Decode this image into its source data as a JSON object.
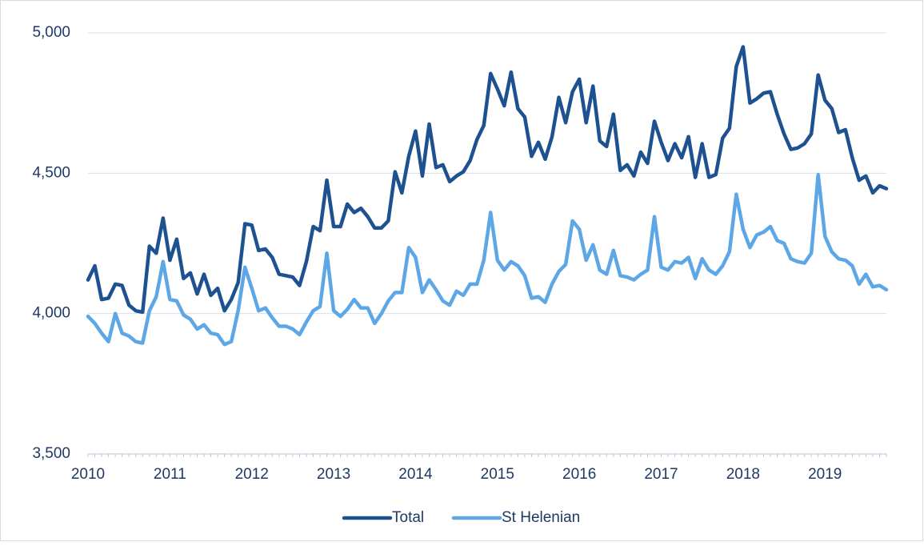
{
  "chart_data": {
    "type": "line",
    "categories": [
      "2010",
      null,
      null,
      null,
      null,
      null,
      null,
      null,
      null,
      null,
      null,
      null,
      "2011",
      null,
      null,
      null,
      null,
      null,
      null,
      null,
      null,
      null,
      null,
      null,
      "2012",
      null,
      null,
      null,
      null,
      null,
      null,
      null,
      null,
      null,
      null,
      null,
      "2013",
      null,
      null,
      null,
      null,
      null,
      null,
      null,
      null,
      null,
      null,
      null,
      "2014",
      null,
      null,
      null,
      null,
      null,
      null,
      null,
      null,
      null,
      null,
      null,
      "2015",
      null,
      null,
      null,
      null,
      null,
      null,
      null,
      null,
      null,
      null,
      null,
      "2016",
      null,
      null,
      null,
      null,
      null,
      null,
      null,
      null,
      null,
      null,
      null,
      "2017",
      null,
      null,
      null,
      null,
      null,
      null,
      null,
      null,
      null,
      null,
      null,
      "2018",
      null,
      null,
      null,
      null,
      null,
      null,
      null,
      null,
      null,
      null,
      null,
      "2019",
      null,
      null,
      null,
      null,
      null,
      null,
      null,
      null,
      null
    ],
    "series": [
      {
        "name": "Total",
        "color": "#1d5190",
        "values": [
          4120,
          4170,
          4050,
          4055,
          4105,
          4100,
          4030,
          4010,
          4005,
          4240,
          4215,
          4340,
          4190,
          4265,
          4125,
          4145,
          4070,
          4140,
          4065,
          4090,
          4010,
          4050,
          4110,
          4320,
          4315,
          4225,
          4230,
          4200,
          4140,
          4135,
          4130,
          4100,
          4185,
          4310,
          4295,
          4475,
          4310,
          4310,
          4390,
          4360,
          4375,
          4345,
          4305,
          4305,
          4330,
          4505,
          4430,
          4560,
          4650,
          4490,
          4675,
          4520,
          4530,
          4470,
          4490,
          4505,
          4545,
          4620,
          4670,
          4855,
          4800,
          4740,
          4860,
          4730,
          4700,
          4560,
          4610,
          4550,
          4630,
          4770,
          4680,
          4790,
          4835,
          4680,
          4810,
          4615,
          4595,
          4710,
          4510,
          4530,
          4490,
          4575,
          4535,
          4685,
          4610,
          4545,
          4605,
          4555,
          4630,
          4485,
          4605,
          4485,
          4495,
          4625,
          4660,
          4880,
          4950,
          4750,
          4765,
          4785,
          4790,
          4710,
          4640,
          4585,
          4590,
          4605,
          4640,
          4850,
          4760,
          4730,
          4645,
          4655,
          4555,
          4475,
          4490,
          4430,
          4455,
          4445
        ]
      },
      {
        "name": "St Helenian",
        "color": "#5ea7e6",
        "values": [
          3990,
          3965,
          3930,
          3900,
          4000,
          3930,
          3920,
          3900,
          3895,
          4010,
          4060,
          4185,
          4050,
          4045,
          3995,
          3980,
          3945,
          3960,
          3930,
          3925,
          3890,
          3900,
          4010,
          4165,
          4090,
          4010,
          4020,
          3985,
          3955,
          3955,
          3945,
          3925,
          3970,
          4010,
          4025,
          4215,
          4010,
          3990,
          4015,
          4050,
          4020,
          4020,
          3965,
          4000,
          4045,
          4075,
          4075,
          4235,
          4200,
          4075,
          4120,
          4085,
          4045,
          4030,
          4080,
          4065,
          4105,
          4105,
          4190,
          4360,
          4190,
          4155,
          4185,
          4170,
          4135,
          4055,
          4060,
          4040,
          4105,
          4150,
          4175,
          4330,
          4300,
          4190,
          4245,
          4155,
          4140,
          4225,
          4135,
          4130,
          4120,
          4140,
          4155,
          4345,
          4165,
          4155,
          4185,
          4180,
          4200,
          4125,
          4195,
          4155,
          4140,
          4170,
          4220,
          4425,
          4300,
          4235,
          4280,
          4290,
          4310,
          4260,
          4250,
          4195,
          4185,
          4180,
          4215,
          4495,
          4275,
          4220,
          4195,
          4190,
          4170,
          4105,
          4140,
          4095,
          4100,
          4085
        ]
      }
    ],
    "ylim": [
      3500,
      5000
    ],
    "yticks": [
      {
        "value": 3500,
        "label": "3,500"
      },
      {
        "value": 4000,
        "label": "4,000"
      },
      {
        "value": 4500,
        "label": "4,500"
      },
      {
        "value": 5000,
        "label": "5,000"
      }
    ],
    "grid": true,
    "legend": "bottom"
  }
}
